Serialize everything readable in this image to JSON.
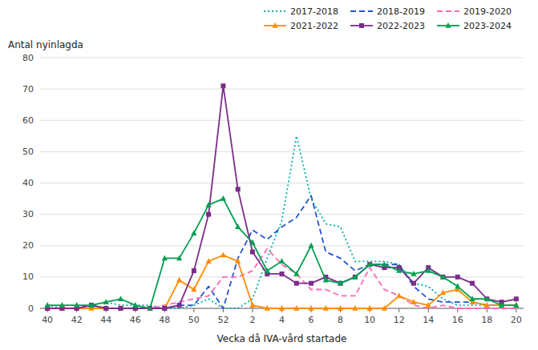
{
  "chart_data": {
    "type": "line",
    "ylabel": "Antal nyinlagda",
    "xlabel": "Vecka då IVA-vård startade",
    "categories": [
      "40",
      null,
      "42",
      null,
      "44",
      null,
      "46",
      null,
      "48",
      null,
      "50",
      null,
      "52",
      null,
      "2",
      null,
      "4",
      null,
      "6",
      null,
      "8",
      null,
      "10",
      null,
      "12",
      null,
      "14",
      null,
      "16",
      null,
      "18",
      null,
      "20"
    ],
    "series": [
      {
        "name": "2017-2018",
        "color": "#00B0A0",
        "line_style": "dotted",
        "values": [
          1,
          0,
          0,
          1,
          2,
          1,
          1,
          1,
          0,
          0,
          1,
          3,
          0,
          0,
          3,
          16,
          28,
          55,
          35,
          27,
          26,
          15,
          15,
          15,
          14,
          8,
          7,
          3,
          1,
          1,
          1,
          1,
          1
        ]
      },
      {
        "name": "2018-2019",
        "color": "#2255CC",
        "line_style": "dashed",
        "values": [
          0,
          0,
          0,
          1,
          0,
          0,
          0,
          0,
          0,
          1,
          1,
          7,
          0,
          16,
          25,
          22,
          26,
          29,
          36,
          18,
          16,
          12,
          14,
          14,
          14,
          7,
          3,
          2,
          2,
          2,
          1,
          1,
          1
        ]
      },
      {
        "name": "2019-2020",
        "color": "#FF69B4",
        "line_style": "dashed",
        "values": [
          0,
          0,
          0,
          0,
          0,
          0,
          0,
          0,
          1,
          2,
          3,
          4,
          10,
          10,
          12,
          19,
          14,
          11,
          6,
          6,
          4,
          4,
          13,
          6,
          4,
          1,
          0,
          1,
          0,
          0,
          0,
          0,
          0
        ]
      },
      {
        "name": "2021-2022",
        "color": "#FF8C00",
        "line_style": "solid",
        "marker": "triangle",
        "values": [
          0,
          0,
          0,
          0,
          0,
          0,
          0,
          0,
          0,
          9,
          6,
          15,
          17,
          15,
          1,
          0,
          0,
          0,
          0,
          0,
          0,
          0,
          0,
          0,
          4,
          2,
          1,
          5,
          6,
          2,
          1,
          1,
          1
        ]
      },
      {
        "name": "2022-2023",
        "color": "#7B2D8B",
        "line_style": "solid",
        "marker": "square",
        "values": [
          0,
          0,
          0,
          1,
          0,
          0,
          0,
          0,
          0,
          1,
          12,
          30,
          71,
          38,
          18,
          11,
          11,
          8,
          8,
          10,
          8,
          10,
          14,
          13,
          13,
          8,
          13,
          10,
          10,
          8,
          3,
          2,
          3
        ]
      },
      {
        "name": "2023-2024",
        "color": "#00A050",
        "line_style": "solid",
        "marker": "triangle",
        "values": [
          1,
          1,
          1,
          1,
          2,
          3,
          1,
          0,
          16,
          16,
          24,
          33,
          35,
          26,
          21,
          12,
          15,
          11,
          20,
          9,
          8,
          10,
          14,
          14,
          12,
          11,
          12,
          10,
          7,
          3,
          3,
          1,
          1
        ]
      }
    ],
    "ylim": [
      0,
      80
    ],
    "yticks": [
      0,
      10,
      20,
      30,
      40,
      50,
      60,
      70,
      80
    ],
    "grid": true,
    "legend": "upper right"
  }
}
